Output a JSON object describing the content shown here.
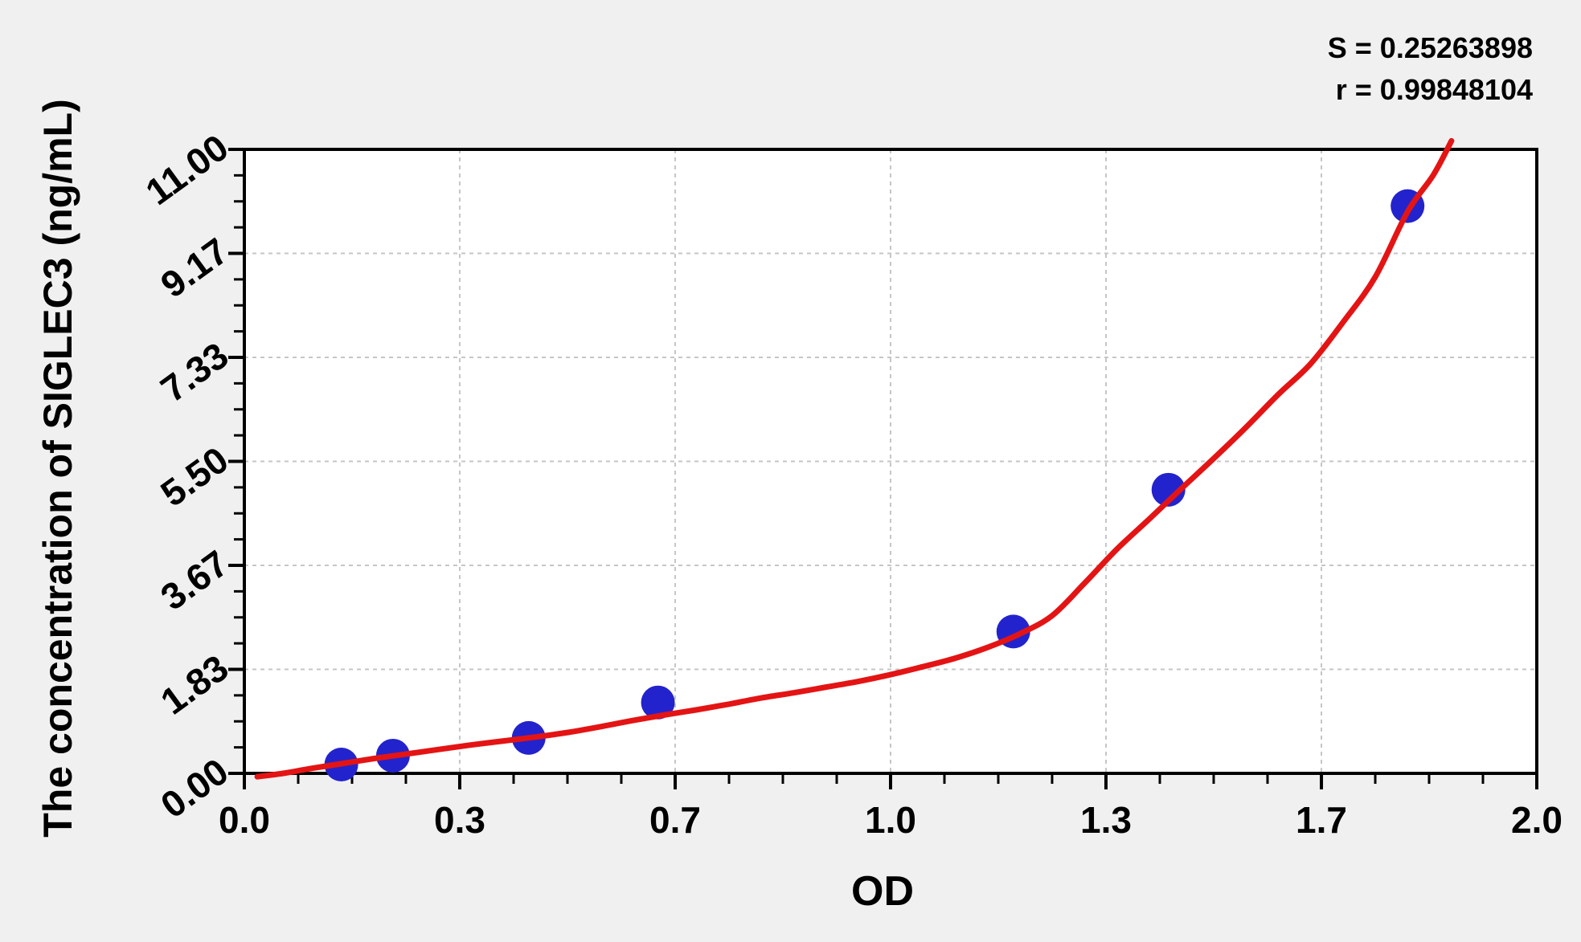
{
  "figure": {
    "background_color": "#f0f0f0",
    "plot_background": "#ffffff",
    "frame_color": "#000000",
    "grid_color": "#c6c6c6",
    "tick_color": "#000000"
  },
  "chart_data": {
    "type": "scatter",
    "title": "",
    "xlabel": "OD",
    "ylabel": "The concentration of SIGLEC3 (ng/mL)",
    "xlim": [
      0,
      2
    ],
    "ylim": [
      0,
      11
    ],
    "grid": true,
    "legend_position": "none",
    "annotations": {
      "S": "S = 0.25263898",
      "r": "r = 0.99848104"
    },
    "x_axis": {
      "major_tick_values": [
        0,
        0.3333,
        0.6667,
        1.0,
        1.3333,
        1.6667,
        2.0
      ],
      "major_tick_labels": [
        "0.0",
        "0.3",
        "0.7",
        "1.0",
        "1.3",
        "1.7",
        "2.0"
      ],
      "minor_divisions": 4
    },
    "y_axis": {
      "major_tick_values": [
        0,
        1.8333,
        3.6667,
        5.5,
        7.3333,
        9.1667,
        11.0
      ],
      "major_tick_labels": [
        "0.00",
        "1.83",
        "3.67",
        "5.50",
        "7.33",
        "9.17",
        "11.00"
      ],
      "minor_divisions": 4
    },
    "series": [
      {
        "name": "standard-points",
        "type": "scatter",
        "color": "#2323cd",
        "marker": "circle",
        "marker_radius": 21,
        "points": [
          [
            0.15,
            0.156
          ],
          [
            0.23,
            0.312
          ],
          [
            0.44,
            0.625
          ],
          [
            0.64,
            1.25
          ],
          [
            1.19,
            2.5
          ],
          [
            1.43,
            5.0
          ],
          [
            1.8,
            10.0
          ]
        ]
      },
      {
        "name": "fitted-curve",
        "type": "line",
        "color": "#e41414",
        "stroke_width": 7,
        "points": [
          [
            0.02,
            -0.06
          ],
          [
            0.06,
            0.0
          ],
          [
            0.1,
            0.08
          ],
          [
            0.15,
            0.17
          ],
          [
            0.2,
            0.26
          ],
          [
            0.25,
            0.34
          ],
          [
            0.3,
            0.42
          ],
          [
            0.35,
            0.5
          ],
          [
            0.4,
            0.57
          ],
          [
            0.45,
            0.64
          ],
          [
            0.5,
            0.72
          ],
          [
            0.55,
            0.82
          ],
          [
            0.6,
            0.93
          ],
          [
            0.65,
            1.03
          ],
          [
            0.7,
            1.12
          ],
          [
            0.75,
            1.22
          ],
          [
            0.8,
            1.33
          ],
          [
            0.85,
            1.42
          ],
          [
            0.9,
            1.52
          ],
          [
            0.95,
            1.62
          ],
          [
            1.0,
            1.74
          ],
          [
            1.05,
            1.88
          ],
          [
            1.1,
            2.03
          ],
          [
            1.15,
            2.22
          ],
          [
            1.2,
            2.46
          ],
          [
            1.25,
            2.78
          ],
          [
            1.3,
            3.35
          ],
          [
            1.35,
            3.95
          ],
          [
            1.4,
            4.48
          ],
          [
            1.45,
            5.02
          ],
          [
            1.5,
            5.55
          ],
          [
            1.55,
            6.1
          ],
          [
            1.6,
            6.68
          ],
          [
            1.65,
            7.22
          ],
          [
            1.7,
            7.95
          ],
          [
            1.75,
            8.75
          ],
          [
            1.8,
            9.9
          ],
          [
            1.84,
            10.55
          ],
          [
            1.868,
            11.15
          ]
        ]
      }
    ]
  }
}
